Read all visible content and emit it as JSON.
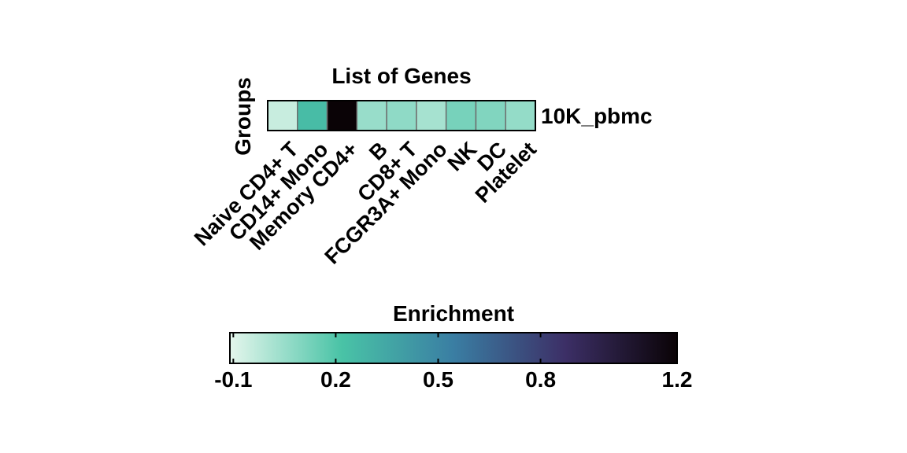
{
  "chart_data": {
    "type": "heatmap",
    "title": "List of Genes",
    "ylabel": "Groups",
    "rows": [
      "10K_pbmc"
    ],
    "columns": [
      "Naive CD4+ T",
      "CD14+ Mono",
      "Memory CD4+",
      "B",
      "CD8+ T",
      "FCGR3A+ Mono",
      "NK",
      "DC",
      "Platelet"
    ],
    "values": [
      [
        -0.05,
        0.25,
        1.2,
        0.05,
        0.07,
        0.02,
        0.12,
        0.1,
        0.06
      ]
    ],
    "colorbar": {
      "label": "Enrichment",
      "range": [
        -0.11,
        1.2
      ],
      "ticks": [
        -0.1,
        0.2,
        0.5,
        0.8,
        1.2
      ],
      "tick_labels": [
        "-0.1",
        "0.2",
        "0.5",
        "0.8",
        "1.2"
      ],
      "colors": [
        "#e4f6ec",
        "#49c3a6",
        "#3a7ea3",
        "#3c2f66",
        "#0a0306"
      ]
    },
    "grid": false
  }
}
